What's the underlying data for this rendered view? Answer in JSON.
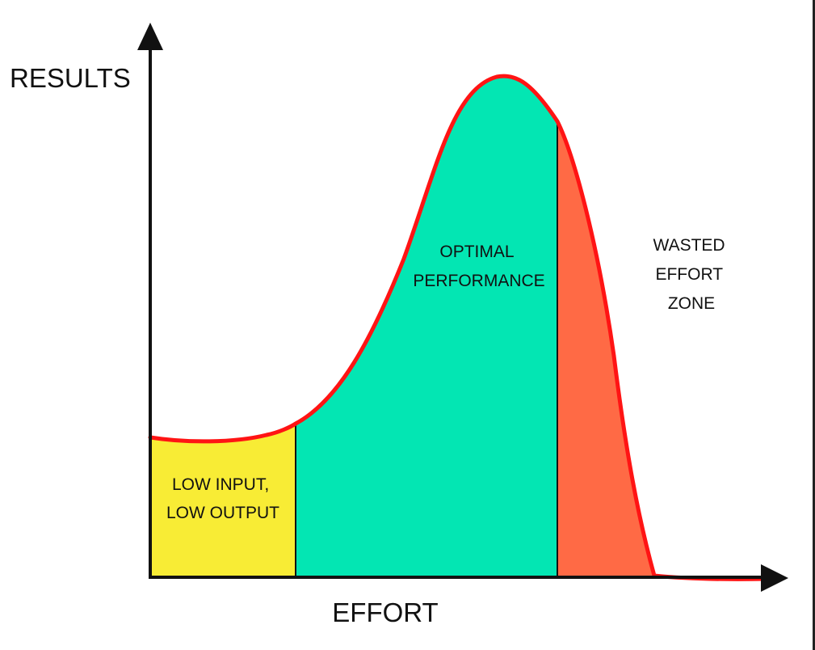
{
  "diagram": {
    "y_axis_label": "RESULTS",
    "x_axis_label": "EFFORT",
    "zones": [
      {
        "id": "low",
        "lines": [
          "LOW INPUT,",
          "LOW OUTPUT"
        ],
        "color": "#f8ec35"
      },
      {
        "id": "optimal",
        "lines": [
          "OPTIMAL",
          "PERFORMANCE"
        ],
        "color": "#03e6b3"
      },
      {
        "id": "wasted",
        "lines": [
          "WASTED",
          "EFFORT",
          "ZONE"
        ],
        "color": "#ff6a45"
      }
    ],
    "curve_color": "#ff1414",
    "axis_color": "#111111"
  }
}
